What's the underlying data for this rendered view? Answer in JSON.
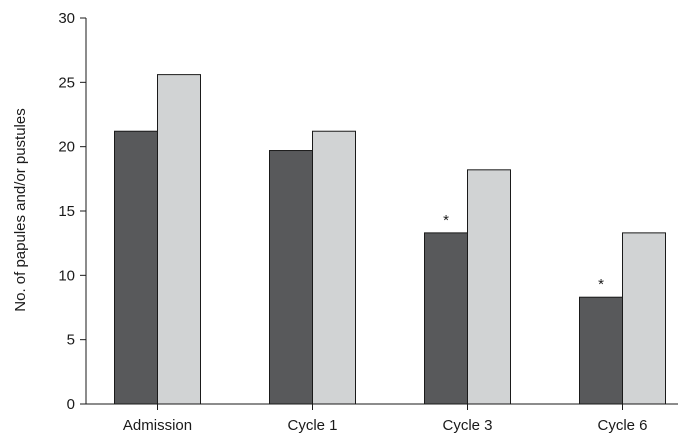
{
  "chart_data": {
    "type": "bar",
    "title": "",
    "xlabel": "",
    "ylabel": "No. of papules and/or pustules",
    "categories": [
      "Admission",
      "Cycle 1",
      "Cycle 3",
      "Cycle 6"
    ],
    "series": [
      {
        "values": [
          21.2,
          19.7,
          13.3,
          8.3
        ],
        "color": "#58595b"
      },
      {
        "values": [
          25.6,
          21.2,
          18.2,
          13.3
        ],
        "color": "#d1d3d4"
      }
    ],
    "yticks": [
      0,
      5,
      10,
      15,
      20,
      25,
      30
    ],
    "ylim": [
      0,
      30
    ],
    "grid": false,
    "legend": "none",
    "annotations": [
      {
        "category": "Cycle 3",
        "series": 0,
        "text": "*"
      },
      {
        "category": "Cycle 6",
        "series": 0,
        "text": "*"
      }
    ]
  }
}
